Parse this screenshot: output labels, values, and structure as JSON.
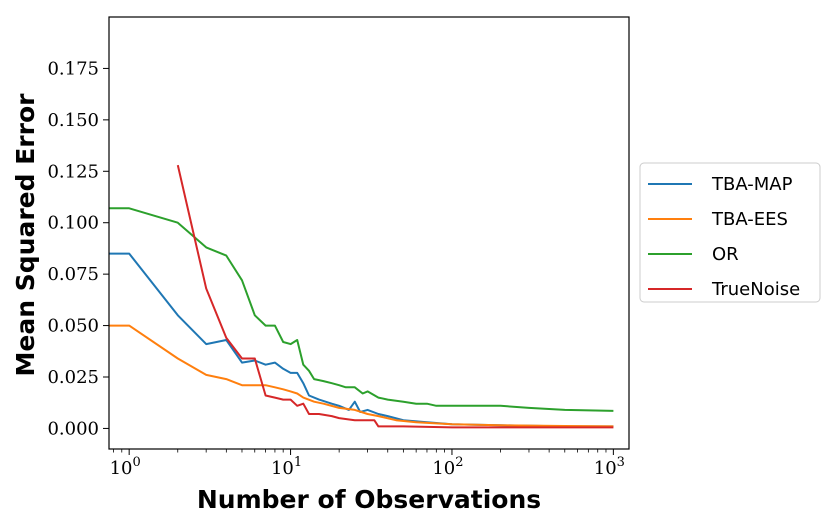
{
  "chart_data": {
    "type": "line",
    "xscale": "log",
    "xlim": [
      0.75,
      1250
    ],
    "ylim": [
      -0.01,
      0.2
    ],
    "xlabel": "Number of Observations",
    "ylabel": "Mean Squared Error",
    "x_ticks": [
      {
        "value": 1,
        "base": "10",
        "exp": "0"
      },
      {
        "value": 10,
        "base": "10",
        "exp": "1"
      },
      {
        "value": 100,
        "base": "10",
        "exp": "2"
      },
      {
        "value": 1000,
        "base": "10",
        "exp": "3"
      }
    ],
    "y_ticks": [
      {
        "value": 0.0,
        "label": "0.000"
      },
      {
        "value": 0.025,
        "label": "0.025"
      },
      {
        "value": 0.05,
        "label": "0.050"
      },
      {
        "value": 0.075,
        "label": "0.075"
      },
      {
        "value": 0.1,
        "label": "0.100"
      },
      {
        "value": 0.125,
        "label": "0.125"
      },
      {
        "value": 0.15,
        "label": "0.150"
      },
      {
        "value": 0.175,
        "label": "0.175"
      }
    ],
    "legend_position": "outside-right",
    "series": [
      {
        "name": "TBA-MAP",
        "color": "#1f77b4",
        "points": [
          [
            0.75,
            0.085
          ],
          [
            1,
            0.085
          ],
          [
            2,
            0.055
          ],
          [
            3,
            0.041
          ],
          [
            4,
            0.043
          ],
          [
            5,
            0.032
          ],
          [
            6,
            0.033
          ],
          [
            7,
            0.031
          ],
          [
            8,
            0.032
          ],
          [
            9,
            0.029
          ],
          [
            10,
            0.027
          ],
          [
            11,
            0.027
          ],
          [
            12,
            0.022
          ],
          [
            13,
            0.016
          ],
          [
            15,
            0.014
          ],
          [
            18,
            0.012
          ],
          [
            20,
            0.011
          ],
          [
            23,
            0.009
          ],
          [
            25,
            0.013
          ],
          [
            27,
            0.008
          ],
          [
            30,
            0.009
          ],
          [
            35,
            0.007
          ],
          [
            40,
            0.006
          ],
          [
            50,
            0.004
          ],
          [
            70,
            0.003
          ],
          [
            100,
            0.002
          ],
          [
            200,
            0.0015
          ],
          [
            500,
            0.001
          ],
          [
            1000,
            0.001
          ]
        ]
      },
      {
        "name": "TBA-EES",
        "color": "#ff7f0e",
        "points": [
          [
            0.75,
            0.05
          ],
          [
            1,
            0.05
          ],
          [
            2,
            0.034
          ],
          [
            3,
            0.026
          ],
          [
            4,
            0.024
          ],
          [
            5,
            0.021
          ],
          [
            6,
            0.021
          ],
          [
            7,
            0.021
          ],
          [
            8,
            0.02
          ],
          [
            9,
            0.019
          ],
          [
            10,
            0.018
          ],
          [
            11,
            0.017
          ],
          [
            12,
            0.015
          ],
          [
            14,
            0.013
          ],
          [
            16,
            0.012
          ],
          [
            20,
            0.01
          ],
          [
            25,
            0.009
          ],
          [
            30,
            0.007
          ],
          [
            35,
            0.006
          ],
          [
            45,
            0.004
          ],
          [
            60,
            0.003
          ],
          [
            100,
            0.002
          ],
          [
            200,
            0.0015
          ],
          [
            500,
            0.0012
          ],
          [
            1000,
            0.001
          ]
        ]
      },
      {
        "name": "OR",
        "color": "#2ca02c",
        "points": [
          [
            0.75,
            0.107
          ],
          [
            1,
            0.107
          ],
          [
            2,
            0.1
          ],
          [
            3,
            0.088
          ],
          [
            4,
            0.084
          ],
          [
            5,
            0.072
          ],
          [
            6,
            0.055
          ],
          [
            7,
            0.05
          ],
          [
            8,
            0.05
          ],
          [
            9,
            0.042
          ],
          [
            10,
            0.041
          ],
          [
            11,
            0.043
          ],
          [
            12,
            0.031
          ],
          [
            13,
            0.028
          ],
          [
            14,
            0.024
          ],
          [
            16,
            0.023
          ],
          [
            18,
            0.022
          ],
          [
            20,
            0.021
          ],
          [
            22,
            0.02
          ],
          [
            25,
            0.02
          ],
          [
            28,
            0.017
          ],
          [
            30,
            0.018
          ],
          [
            35,
            0.015
          ],
          [
            40,
            0.014
          ],
          [
            50,
            0.013
          ],
          [
            60,
            0.012
          ],
          [
            70,
            0.012
          ],
          [
            80,
            0.011
          ],
          [
            100,
            0.011
          ],
          [
            130,
            0.011
          ],
          [
            200,
            0.011
          ],
          [
            300,
            0.01
          ],
          [
            500,
            0.009
          ],
          [
            1000,
            0.0085
          ]
        ]
      },
      {
        "name": "TrueNoise",
        "color": "#d62728",
        "points": [
          [
            2,
            0.128
          ],
          [
            3,
            0.068
          ],
          [
            4,
            0.044
          ],
          [
            5,
            0.034
          ],
          [
            6,
            0.034
          ],
          [
            7,
            0.016
          ],
          [
            8,
            0.015
          ],
          [
            9,
            0.014
          ],
          [
            10,
            0.014
          ],
          [
            11,
            0.011
          ],
          [
            12,
            0.012
          ],
          [
            13,
            0.007
          ],
          [
            15,
            0.007
          ],
          [
            18,
            0.006
          ],
          [
            20,
            0.005
          ],
          [
            25,
            0.004
          ],
          [
            30,
            0.004
          ],
          [
            33,
            0.004
          ],
          [
            35,
            0.001
          ],
          [
            50,
            0.001
          ],
          [
            100,
            0.0005
          ],
          [
            1000,
            0.0005
          ]
        ]
      }
    ]
  }
}
